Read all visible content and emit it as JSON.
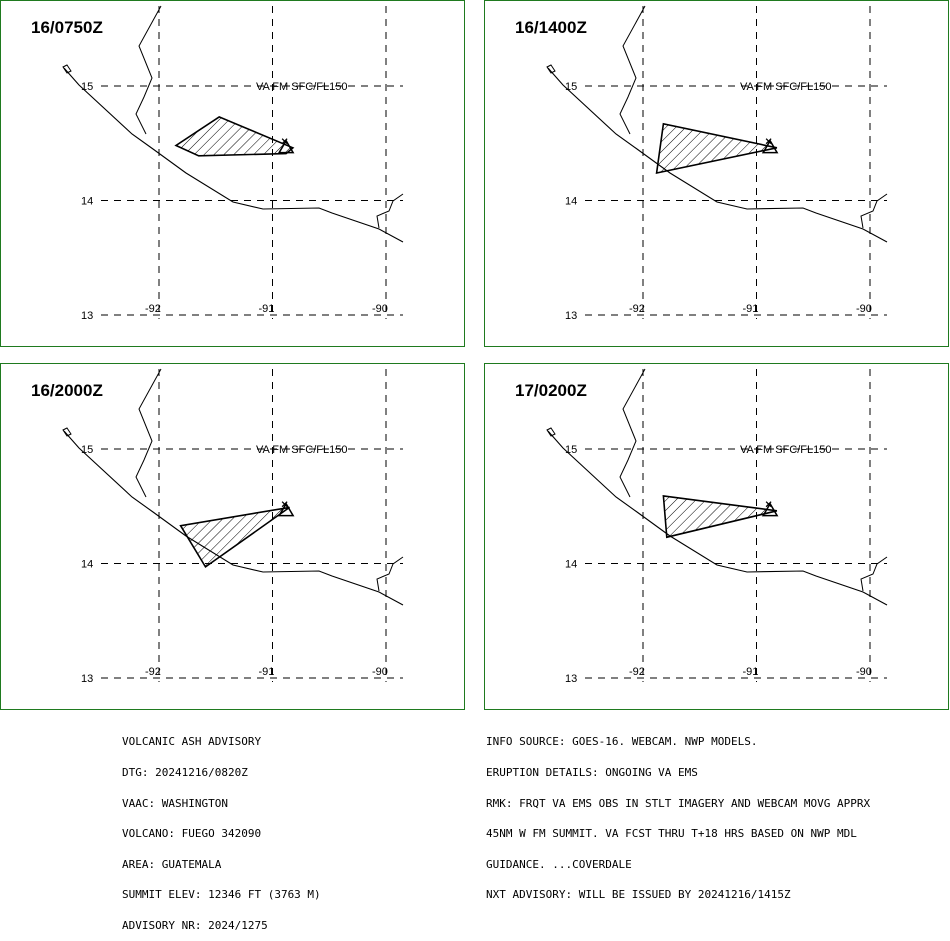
{
  "panels": [
    {
      "time": "16/0750Z",
      "label": "VA FM SFC/FL150",
      "ash_polygon": [
        [
          -91.47,
          14.73
        ],
        [
          -91.85,
          14.48
        ],
        [
          -91.65,
          14.39
        ],
        [
          -90.88,
          14.41
        ],
        [
          -90.82,
          14.46
        ]
      ]
    },
    {
      "time": "16/1400Z",
      "label": "VA FM SFC/FL150",
      "ash_polygon": [
        [
          -91.82,
          14.67
        ],
        [
          -91.88,
          14.24
        ],
        [
          -90.82,
          14.46
        ]
      ]
    },
    {
      "time": "16/2000Z",
      "label": "VA FM SFC/FL150",
      "ash_polygon": [
        [
          -91.81,
          14.33
        ],
        [
          -91.59,
          13.97
        ],
        [
          -90.85,
          14.49
        ]
      ]
    },
    {
      "time": "17/0200Z",
      "label": "VA FM SFC/FL150",
      "ash_polygon": [
        [
          -91.82,
          14.59
        ],
        [
          -91.79,
          14.23
        ],
        [
          -90.82,
          14.46
        ]
      ]
    }
  ],
  "axes": {
    "lat_ticks": [
      "15",
      "14",
      "13"
    ],
    "lon_ticks": [
      "-92",
      "-91",
      "-90"
    ]
  },
  "volcano_symbol": "volcano-triangle-icon",
  "colors": {
    "panel_border": "#1f7a1f",
    "ink": "#000000"
  },
  "info_left": [
    "VOLCANIC ASH ADVISORY",
    "DTG: 20241216/0820Z",
    "VAAC: WASHINGTON",
    "VOLCANO: FUEGO 342090",
    "AREA: GUATEMALA",
    "SUMMIT ELEV: 12346 FT (3763 M)",
    "ADVISORY NR: 2024/1275"
  ],
  "info_right": [
    "INFO SOURCE: GOES-16. WEBCAM. NWP MODELS.",
    "ERUPTION DETAILS: ONGOING VA EMS",
    "RMK: FRQT VA EMS OBS IN STLT IMAGERY AND WEBCAM MOVG APPRX",
    "45NM W FM SUMMIT. VA FCST THRU T+18 HRS BASED ON NWP MDL",
    "GUIDANCE. ...COVERDALE",
    "NXT ADVISORY: WILL BE ISSUED BY 20241216/1415Z"
  ]
}
